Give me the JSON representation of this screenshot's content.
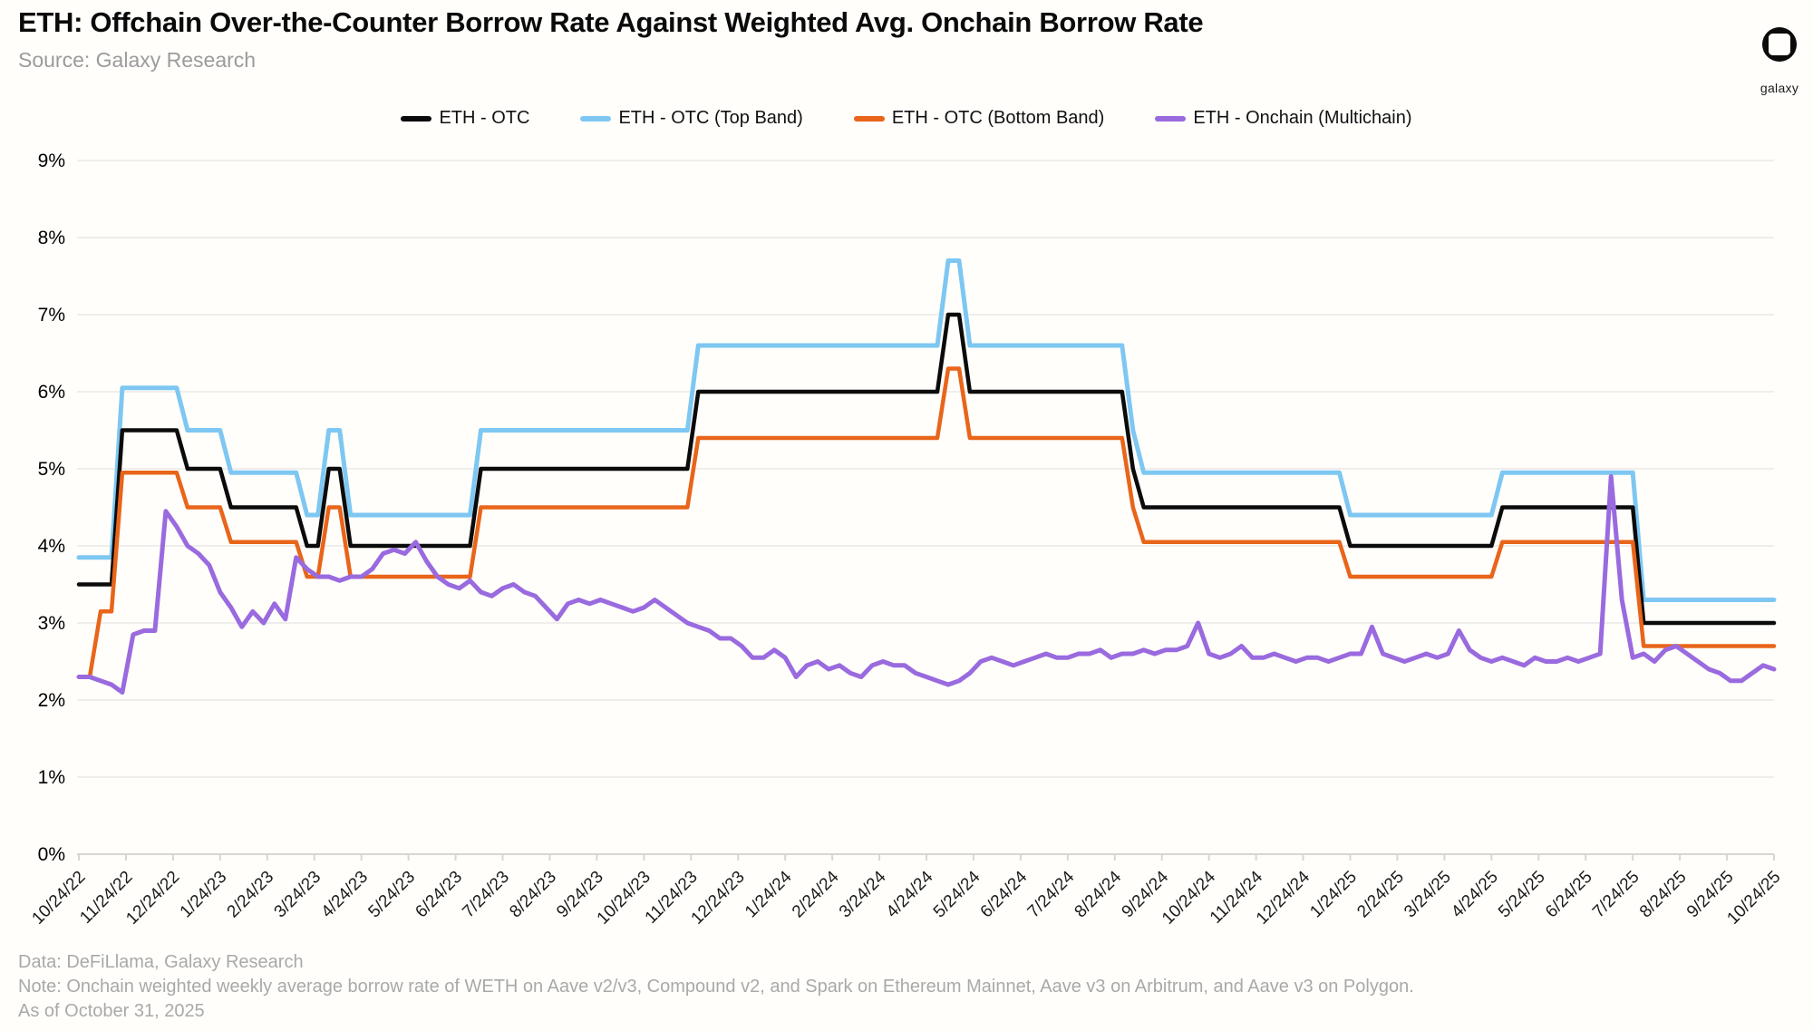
{
  "header": {
    "title": "ETH: Offchain Over-the-Counter Borrow Rate Against Weighted Avg. Onchain Borrow Rate",
    "source": "Source: Galaxy Research",
    "logo_text": "galaxy"
  },
  "legend": {
    "items": [
      {
        "label": "ETH - OTC",
        "color": "#0b0b0b"
      },
      {
        "label": "ETH - OTC (Top Band)",
        "color": "#7ec7f2"
      },
      {
        "label": "ETH - OTC (Bottom Band)",
        "color": "#e8651a"
      },
      {
        "label": "ETH - Onchain (Multichain)",
        "color": "#9a6adf"
      }
    ]
  },
  "footer": {
    "line1": "Data: DeFiLlama, Galaxy Research",
    "line2": "Note: Onchain weighted weekly average borrow rate of WETH on Aave v2/v3, Compound v2, and Spark on Ethereum Mainnet, Aave v3 on Arbitrum, and Aave v3 on Polygon.",
    "line3": "As of October 31, 2025"
  },
  "chart_data": {
    "type": "line",
    "title": "ETH: Offchain Over-the-Counter Borrow Rate Against Weighted Avg. Onchain Borrow Rate",
    "x_unit": "weekly observations, 10/24/22 through 10/24/25",
    "ylim": [
      0,
      9
    ],
    "grid": "horizontal",
    "legend_position": "top",
    "background": "#fffefb",
    "grid_color": "#f0eeec",
    "axis_color": "#d9d6d2",
    "y_tick_labels": [
      "0%",
      "1%",
      "2%",
      "3%",
      "4%",
      "5%",
      "6%",
      "7%",
      "8%",
      "9%"
    ],
    "x_tick_labels": [
      "10/24/22",
      "11/24/22",
      "12/24/22",
      "1/24/23",
      "2/24/23",
      "3/24/23",
      "4/24/23",
      "5/24/23",
      "6/24/23",
      "7/24/23",
      "8/24/23",
      "9/24/23",
      "10/24/23",
      "11/24/23",
      "12/24/23",
      "1/24/24",
      "2/24/24",
      "3/24/24",
      "4/24/24",
      "5/24/24",
      "6/24/24",
      "7/24/24",
      "8/24/24",
      "9/24/24",
      "10/24/24",
      "11/24/24",
      "12/24/24",
      "1/24/25",
      "2/24/25",
      "3/24/25",
      "4/24/25",
      "5/24/25",
      "6/24/25",
      "7/24/25",
      "8/24/25",
      "9/24/25",
      "10/24/25"
    ],
    "series": [
      {
        "name": "ETH - OTC (Top Band)",
        "color": "#7ec7f2",
        "line_width": 5,
        "values": [
          3.85,
          3.85,
          3.85,
          3.85,
          6.05,
          6.05,
          6.05,
          6.05,
          6.05,
          6.05,
          5.5,
          5.5,
          5.5,
          5.5,
          4.95,
          4.95,
          4.95,
          4.95,
          4.95,
          4.95,
          4.95,
          4.4,
          4.4,
          5.5,
          5.5,
          4.4,
          4.4,
          4.4,
          4.4,
          4.4,
          4.4,
          4.4,
          4.4,
          4.4,
          4.4,
          4.4,
          4.4,
          5.5,
          5.5,
          5.5,
          5.5,
          5.5,
          5.5,
          5.5,
          5.5,
          5.5,
          5.5,
          5.5,
          5.5,
          5.5,
          5.5,
          5.5,
          5.5,
          5.5,
          5.5,
          5.5,
          5.5,
          6.6,
          6.6,
          6.6,
          6.6,
          6.6,
          6.6,
          6.6,
          6.6,
          6.6,
          6.6,
          6.6,
          6.6,
          6.6,
          6.6,
          6.6,
          6.6,
          6.6,
          6.6,
          6.6,
          6.6,
          6.6,
          6.6,
          6.6,
          7.7,
          7.7,
          6.6,
          6.6,
          6.6,
          6.6,
          6.6,
          6.6,
          6.6,
          6.6,
          6.6,
          6.6,
          6.6,
          6.6,
          6.6,
          6.6,
          6.6,
          5.5,
          4.95,
          4.95,
          4.95,
          4.95,
          4.95,
          4.95,
          4.95,
          4.95,
          4.95,
          4.95,
          4.95,
          4.95,
          4.95,
          4.95,
          4.95,
          4.95,
          4.95,
          4.95,
          4.95,
          4.4,
          4.4,
          4.4,
          4.4,
          4.4,
          4.4,
          4.4,
          4.4,
          4.4,
          4.4,
          4.4,
          4.4,
          4.4,
          4.4,
          4.95,
          4.95,
          4.95,
          4.95,
          4.95,
          4.95,
          4.95,
          4.95,
          4.95,
          4.95,
          4.95,
          4.95,
          4.95,
          3.3,
          3.3,
          3.3,
          3.3,
          3.3,
          3.3,
          3.3,
          3.3,
          3.3,
          3.3,
          3.3,
          3.3,
          3.3
        ]
      },
      {
        "name": "ETH - OTC",
        "color": "#0b0b0b",
        "line_width": 4.5,
        "values": [
          3.5,
          3.5,
          3.5,
          3.5,
          5.5,
          5.5,
          5.5,
          5.5,
          5.5,
          5.5,
          5.0,
          5.0,
          5.0,
          5.0,
          4.5,
          4.5,
          4.5,
          4.5,
          4.5,
          4.5,
          4.5,
          4.0,
          4.0,
          5.0,
          5.0,
          4.0,
          4.0,
          4.0,
          4.0,
          4.0,
          4.0,
          4.0,
          4.0,
          4.0,
          4.0,
          4.0,
          4.0,
          5.0,
          5.0,
          5.0,
          5.0,
          5.0,
          5.0,
          5.0,
          5.0,
          5.0,
          5.0,
          5.0,
          5.0,
          5.0,
          5.0,
          5.0,
          5.0,
          5.0,
          5.0,
          5.0,
          5.0,
          6.0,
          6.0,
          6.0,
          6.0,
          6.0,
          6.0,
          6.0,
          6.0,
          6.0,
          6.0,
          6.0,
          6.0,
          6.0,
          6.0,
          6.0,
          6.0,
          6.0,
          6.0,
          6.0,
          6.0,
          6.0,
          6.0,
          6.0,
          7.0,
          7.0,
          6.0,
          6.0,
          6.0,
          6.0,
          6.0,
          6.0,
          6.0,
          6.0,
          6.0,
          6.0,
          6.0,
          6.0,
          6.0,
          6.0,
          6.0,
          5.0,
          4.5,
          4.5,
          4.5,
          4.5,
          4.5,
          4.5,
          4.5,
          4.5,
          4.5,
          4.5,
          4.5,
          4.5,
          4.5,
          4.5,
          4.5,
          4.5,
          4.5,
          4.5,
          4.5,
          4.0,
          4.0,
          4.0,
          4.0,
          4.0,
          4.0,
          4.0,
          4.0,
          4.0,
          4.0,
          4.0,
          4.0,
          4.0,
          4.0,
          4.5,
          4.5,
          4.5,
          4.5,
          4.5,
          4.5,
          4.5,
          4.5,
          4.5,
          4.5,
          4.5,
          4.5,
          4.5,
          3.0,
          3.0,
          3.0,
          3.0,
          3.0,
          3.0,
          3.0,
          3.0,
          3.0,
          3.0,
          3.0,
          3.0,
          3.0
        ]
      },
      {
        "name": "ETH - OTC (Bottom Band)",
        "color": "#e8651a",
        "line_width": 4.5,
        "values": [
          2.3,
          2.3,
          3.15,
          3.15,
          4.95,
          4.95,
          4.95,
          4.95,
          4.95,
          4.95,
          4.5,
          4.5,
          4.5,
          4.5,
          4.05,
          4.05,
          4.05,
          4.05,
          4.05,
          4.05,
          4.05,
          3.6,
          3.6,
          4.5,
          4.5,
          3.6,
          3.6,
          3.6,
          3.6,
          3.6,
          3.6,
          3.6,
          3.6,
          3.6,
          3.6,
          3.6,
          3.6,
          4.5,
          4.5,
          4.5,
          4.5,
          4.5,
          4.5,
          4.5,
          4.5,
          4.5,
          4.5,
          4.5,
          4.5,
          4.5,
          4.5,
          4.5,
          4.5,
          4.5,
          4.5,
          4.5,
          4.5,
          5.4,
          5.4,
          5.4,
          5.4,
          5.4,
          5.4,
          5.4,
          5.4,
          5.4,
          5.4,
          5.4,
          5.4,
          5.4,
          5.4,
          5.4,
          5.4,
          5.4,
          5.4,
          5.4,
          5.4,
          5.4,
          5.4,
          5.4,
          6.3,
          6.3,
          5.4,
          5.4,
          5.4,
          5.4,
          5.4,
          5.4,
          5.4,
          5.4,
          5.4,
          5.4,
          5.4,
          5.4,
          5.4,
          5.4,
          5.4,
          4.5,
          4.05,
          4.05,
          4.05,
          4.05,
          4.05,
          4.05,
          4.05,
          4.05,
          4.05,
          4.05,
          4.05,
          4.05,
          4.05,
          4.05,
          4.05,
          4.05,
          4.05,
          4.05,
          4.05,
          3.6,
          3.6,
          3.6,
          3.6,
          3.6,
          3.6,
          3.6,
          3.6,
          3.6,
          3.6,
          3.6,
          3.6,
          3.6,
          3.6,
          4.05,
          4.05,
          4.05,
          4.05,
          4.05,
          4.05,
          4.05,
          4.05,
          4.05,
          4.05,
          4.05,
          4.05,
          4.05,
          2.7,
          2.7,
          2.7,
          2.7,
          2.7,
          2.7,
          2.7,
          2.7,
          2.7,
          2.7,
          2.7,
          2.7,
          2.7
        ]
      },
      {
        "name": "ETH - Onchain (Multichain)",
        "color": "#9a6adf",
        "line_width": 5,
        "values": [
          2.3,
          2.3,
          2.25,
          2.2,
          2.1,
          2.85,
          2.9,
          2.9,
          4.45,
          4.25,
          4.0,
          3.9,
          3.75,
          3.4,
          3.2,
          2.95,
          3.15,
          3.0,
          3.25,
          3.05,
          3.85,
          3.7,
          3.6,
          3.6,
          3.55,
          3.6,
          3.6,
          3.7,
          3.9,
          3.95,
          3.9,
          4.05,
          3.8,
          3.6,
          3.5,
          3.45,
          3.55,
          3.4,
          3.35,
          3.45,
          3.5,
          3.4,
          3.35,
          3.2,
          3.05,
          3.25,
          3.3,
          3.25,
          3.3,
          3.25,
          3.2,
          3.15,
          3.2,
          3.3,
          3.2,
          3.1,
          3.0,
          2.95,
          2.9,
          2.8,
          2.8,
          2.7,
          2.55,
          2.55,
          2.65,
          2.55,
          2.3,
          2.45,
          2.5,
          2.4,
          2.45,
          2.35,
          2.3,
          2.45,
          2.5,
          2.45,
          2.45,
          2.35,
          2.3,
          2.25,
          2.2,
          2.25,
          2.35,
          2.5,
          2.55,
          2.5,
          2.45,
          2.5,
          2.55,
          2.6,
          2.55,
          2.55,
          2.6,
          2.6,
          2.65,
          2.55,
          2.6,
          2.6,
          2.65,
          2.6,
          2.65,
          2.65,
          2.7,
          3.0,
          2.6,
          2.55,
          2.6,
          2.7,
          2.55,
          2.55,
          2.6,
          2.55,
          2.5,
          2.55,
          2.55,
          2.5,
          2.55,
          2.6,
          2.6,
          2.95,
          2.6,
          2.55,
          2.5,
          2.55,
          2.6,
          2.55,
          2.6,
          2.9,
          2.65,
          2.55,
          2.5,
          2.55,
          2.5,
          2.45,
          2.55,
          2.5,
          2.5,
          2.55,
          2.5,
          2.55,
          2.6,
          4.9,
          3.3,
          2.55,
          2.6,
          2.5,
          2.65,
          2.7,
          2.6,
          2.5,
          2.4,
          2.35,
          2.25,
          2.25,
          2.35,
          2.45,
          2.4
        ]
      }
    ]
  }
}
